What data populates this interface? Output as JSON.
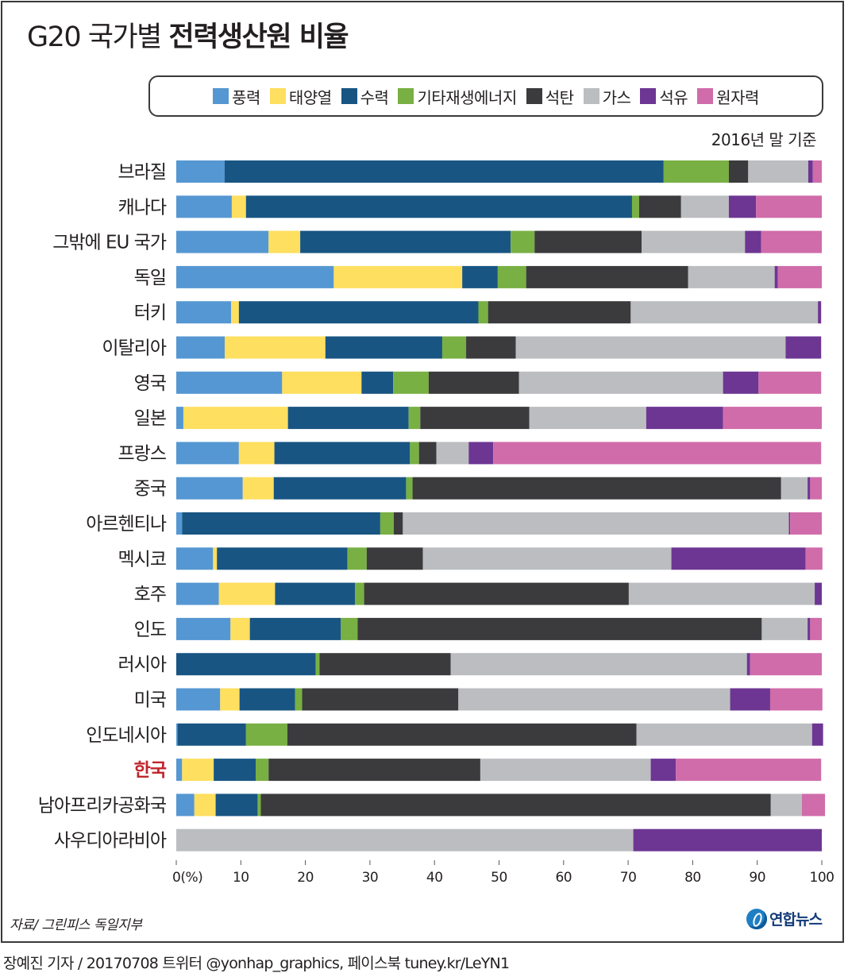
{
  "title": {
    "light": "G20 국가별 ",
    "bold": "전력생산원 비율"
  },
  "basis_note": "2016년 말 기준",
  "legend": [
    {
      "label": "풍력",
      "color": "#5597d2"
    },
    {
      "label": "태양열",
      "color": "#fedf5f"
    },
    {
      "label": "수력",
      "color": "#185583"
    },
    {
      "label": "기타재생에너지",
      "color": "#78b043"
    },
    {
      "label": "석탄",
      "color": "#3b3b3d"
    },
    {
      "label": "가스",
      "color": "#bcbdc0"
    },
    {
      "label": "석유",
      "color": "#6d3693"
    },
    {
      "label": "원자력",
      "color": "#d06caa"
    }
  ],
  "highlight_color": "#c1272d",
  "source": "자료/ 그린피스 독일지부",
  "logo_text": "연합뉴스",
  "credit": "장예진 기자 / 20170708 트위터 @yonhap_graphics, 페이스북 tuney.kr/LeYN1",
  "chart_data": {
    "type": "bar",
    "orientation": "horizontal",
    "stacked": true,
    "title": "G20 국가별 전력생산원 비율",
    "subtitle": "2016년 말 기준",
    "xlabel": "(%)",
    "ylabel": "",
    "xlim": [
      0,
      100
    ],
    "xticks": [
      0,
      10,
      20,
      30,
      40,
      50,
      60,
      70,
      80,
      90,
      100
    ],
    "xtick_labels": [
      "0(%)",
      "10",
      "20",
      "30",
      "40",
      "50",
      "60",
      "70",
      "80",
      "90",
      "100"
    ],
    "grid": false,
    "legend_position": "top",
    "categories": [
      "브라질",
      "캐나다",
      "그밖에 EU 국가",
      "독일",
      "터키",
      "이탈리아",
      "영국",
      "일본",
      "프랑스",
      "중국",
      "아르헨티나",
      "멕시코",
      "호주",
      "인도",
      "러시아",
      "미국",
      "인도네시아",
      "한국",
      "남아프리카공화국",
      "사우디아라비아"
    ],
    "highlighted_category": "한국",
    "series": [
      {
        "name": "풍력",
        "values": [
          7.5,
          8.6,
          14.3,
          24.4,
          8.5,
          7.5,
          16.4,
          1.1,
          9.7,
          10.3,
          0.9,
          5.7,
          6.6,
          8.4,
          0.0,
          6.8,
          0.2,
          0.9,
          2.8,
          0.0
        ]
      },
      {
        "name": "태양열",
        "values": [
          0.0,
          2.2,
          4.9,
          19.9,
          1.2,
          15.6,
          12.3,
          16.2,
          5.5,
          4.8,
          0.0,
          0.6,
          8.7,
          3.0,
          0.0,
          3.0,
          0.0,
          4.9,
          3.3,
          0.0
        ]
      },
      {
        "name": "수력",
        "values": [
          68.0,
          59.8,
          32.6,
          5.5,
          37.1,
          18.1,
          4.9,
          18.7,
          21.0,
          20.5,
          30.7,
          20.2,
          12.4,
          14.1,
          21.6,
          8.6,
          10.6,
          6.5,
          6.5,
          0.0
        ]
      },
      {
        "name": "기타재생에너지",
        "values": [
          10.1,
          1.1,
          3.7,
          4.4,
          1.5,
          3.7,
          5.5,
          1.8,
          1.4,
          1.0,
          2.1,
          3.0,
          1.4,
          2.6,
          0.6,
          1.1,
          6.4,
          2.0,
          0.5,
          0.0
        ]
      },
      {
        "name": "석탄",
        "values": [
          3.0,
          6.5,
          16.6,
          25.1,
          22.1,
          7.7,
          14.0,
          16.9,
          2.7,
          57.1,
          1.4,
          8.7,
          41.0,
          62.6,
          20.3,
          24.2,
          54.1,
          32.8,
          79.0,
          0.0
        ]
      },
      {
        "name": "가스",
        "values": [
          9.3,
          7.4,
          16.0,
          13.4,
          29.0,
          41.8,
          31.6,
          18.1,
          5.0,
          4.1,
          59.8,
          38.5,
          28.8,
          7.1,
          45.9,
          42.1,
          27.2,
          26.4,
          4.8,
          70.8
        ]
      },
      {
        "name": "석유",
        "values": [
          0.7,
          4.2,
          2.5,
          0.5,
          0.5,
          5.5,
          5.5,
          11.9,
          3.8,
          0.4,
          0.2,
          20.8,
          1.1,
          0.4,
          0.5,
          6.2,
          1.7,
          3.9,
          0.0,
          29.2
        ]
      },
      {
        "name": "원자력",
        "values": [
          1.4,
          10.2,
          9.4,
          6.8,
          0.0,
          0.0,
          9.7,
          15.3,
          50.8,
          1.8,
          4.9,
          2.6,
          0.0,
          1.8,
          11.1,
          8.1,
          0.0,
          22.5,
          3.6,
          0.0
        ]
      }
    ]
  }
}
